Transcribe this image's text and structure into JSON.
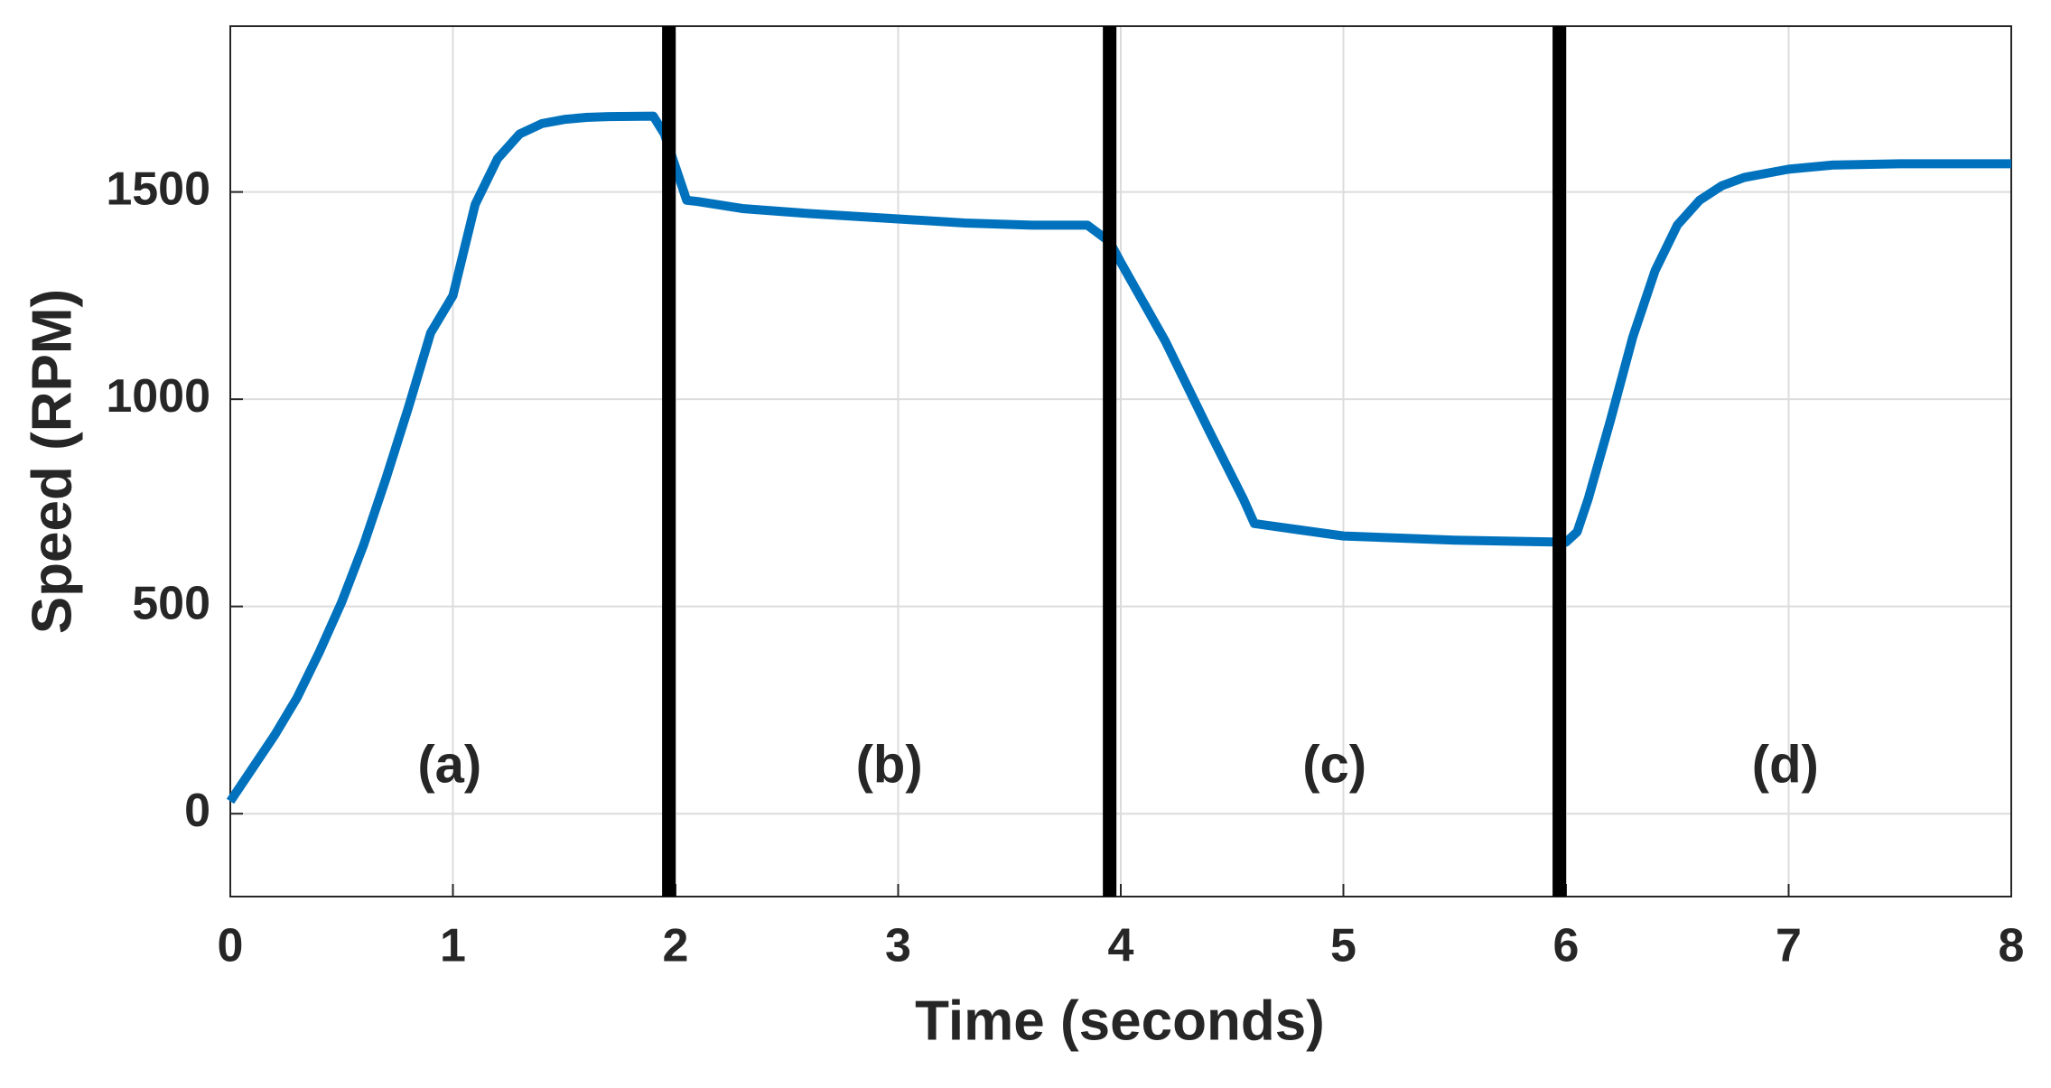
{
  "chart_data": {
    "type": "line",
    "x_label": "Time (seconds)",
    "y_label": "Speed (RPM)",
    "x": [
      0,
      0.1,
      0.2,
      0.3,
      0.4,
      0.5,
      0.6,
      0.7,
      0.8,
      0.9,
      1.0,
      1.1,
      1.2,
      1.3,
      1.4,
      1.5,
      1.6,
      1.7,
      1.9,
      1.95,
      2.0,
      2.05,
      2.1,
      2.3,
      2.6,
      3.0,
      3.3,
      3.6,
      3.85,
      3.95,
      4.0,
      4.2,
      4.4,
      4.55,
      4.6,
      4.8,
      5.0,
      5.5,
      6.0,
      6.05,
      6.1,
      6.2,
      6.3,
      6.4,
      6.5,
      6.6,
      6.7,
      6.8,
      7.0,
      7.2,
      7.5,
      8.0
    ],
    "series": [
      {
        "color": "#0072bd",
        "values": [
          30,
          110,
          190,
          280,
          390,
          510,
          650,
          810,
          980,
          1160,
          1250,
          1470,
          1580,
          1640,
          1665,
          1675,
          1680,
          1682,
          1683,
          1640,
          1560,
          1480,
          1477,
          1460,
          1448,
          1435,
          1425,
          1420,
          1420,
          1380,
          1330,
          1140,
          920,
          760,
          700,
          685,
          670,
          660,
          655,
          680,
          760,
          950,
          1150,
          1310,
          1420,
          1480,
          1515,
          1535,
          1555,
          1565,
          1568,
          1568
        ]
      }
    ],
    "vlines": [
      1.97,
      3.95,
      5.97
    ],
    "vline_color": "#000000",
    "annotations": [
      "(a)",
      "(b)",
      "(c)",
      "(d)"
    ],
    "xlim": [
      0,
      8
    ],
    "xticks": [
      0,
      1,
      2,
      3,
      4,
      5,
      6,
      7,
      8
    ],
    "ylim": [
      -200,
      1900
    ],
    "yticks": [
      0,
      500,
      1000,
      1500
    ],
    "grid": true
  }
}
